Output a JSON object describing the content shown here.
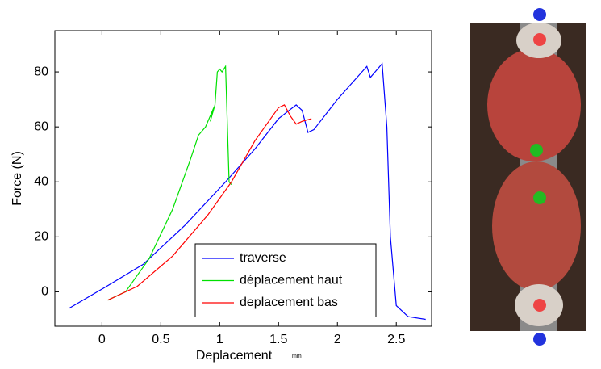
{
  "chart_data": {
    "type": "line",
    "x_label": "Deplacement",
    "x_unit": "mm",
    "y_label": "Force (N)",
    "xlim": [
      -0.4,
      2.8
    ],
    "ylim": [
      -12.5,
      95
    ],
    "xticks": [
      0,
      0.5,
      1,
      1.5,
      2,
      2.5
    ],
    "yticks": [
      0,
      20,
      40,
      60,
      80
    ],
    "grid": false,
    "legend": "bottom-center",
    "series": [
      {
        "name": "traverse",
        "color": "#0000ff",
        "x": [
          -0.28,
          0,
          0.35,
          0.7,
          1.05,
          1.3,
          1.5,
          1.65,
          1.7,
          1.75,
          1.8,
          2.0,
          2.25,
          2.28,
          2.38,
          2.42,
          2.45,
          2.5,
          2.6,
          2.75
        ],
        "values": [
          -6,
          1,
          10,
          24,
          40,
          52,
          63,
          68,
          66,
          58,
          59,
          70,
          82,
          78,
          83,
          60,
          20,
          -5,
          -9,
          -10
        ]
      },
      {
        "name": "déplacement haut",
        "color": "#00e000",
        "x": [
          0.05,
          0.2,
          0.4,
          0.6,
          0.75,
          0.82,
          0.88,
          0.95,
          0.92,
          0.96,
          0.98,
          1.0,
          1.02,
          1.05,
          1.08,
          1.1
        ],
        "values": [
          -3,
          0,
          12,
          30,
          48,
          57,
          60,
          67,
          62,
          68,
          80,
          81,
          80,
          82,
          40,
          39
        ]
      },
      {
        "name": "deplacement bas",
        "color": "#ff0000",
        "x": [
          0.05,
          0.3,
          0.6,
          0.9,
          1.1,
          1.3,
          1.5,
          1.55,
          1.6,
          1.65,
          1.7,
          1.78
        ],
        "values": [
          -3,
          2,
          13,
          28,
          40,
          55,
          67,
          68,
          64,
          61,
          62,
          63
        ]
      }
    ]
  }
}
